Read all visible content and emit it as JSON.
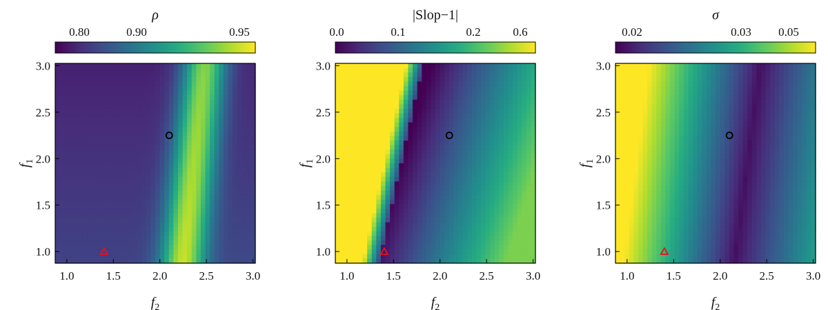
{
  "chart_data": [
    {
      "type": "heatmap",
      "colorbar_title": "ρ",
      "colorbar_title_italic": true,
      "colorbar_ticks": [
        "0.80",
        "0.90",
        "0.95"
      ],
      "xlabel": "f2",
      "ylabel": "f1",
      "xlim": [
        0.875,
        3.025
      ],
      "ylim": [
        0.875,
        3.025
      ],
      "xticks": [
        "1.0",
        "1.5",
        "2.0",
        "2.5",
        "3.0"
      ],
      "yticks": [
        "1.0",
        "1.5",
        "2.0",
        "2.5",
        "3.0"
      ],
      "field": "ridge of maximum values (yellow) running from f2≈2.25 at f1=0.9 to f2≈2.5 at f1=3.0; low values (dark) at small f2 and large f1",
      "markers": [
        {
          "shape": "circle",
          "color": "#000000",
          "f2": 2.1,
          "f1": 2.25
        },
        {
          "shape": "triangle",
          "color": "#e8101a",
          "f2": 1.4,
          "f1": 1.0
        }
      ],
      "colormap": "viridis"
    },
    {
      "type": "heatmap",
      "colorbar_title": "|Slop−1|",
      "colorbar_title_italic": false,
      "colorbar_ticks": [
        "0.0",
        "0.1",
        "0.2",
        "0.6"
      ],
      "xlabel": "f2",
      "ylabel": "f1",
      "xlim": [
        0.875,
        3.025
      ],
      "ylim": [
        0.875,
        3.025
      ],
      "xticks": [
        "1.0",
        "1.5",
        "2.0",
        "2.5",
        "3.0"
      ],
      "yticks": [
        "1.0",
        "1.5",
        "2.0",
        "2.5",
        "3.0"
      ],
      "field": "minimum valley (dark) running from f2≈1.4 at f1=0.9 to f2≈1.8 at f1=3.0; high values (yellow) at small f2",
      "markers": [
        {
          "shape": "circle",
          "color": "#000000",
          "f2": 2.1,
          "f1": 2.25
        },
        {
          "shape": "triangle",
          "color": "#e8101a",
          "f2": 1.4,
          "f1": 1.0
        }
      ],
      "colormap": "viridis"
    },
    {
      "type": "heatmap",
      "colorbar_title": "σ",
      "colorbar_title_italic": true,
      "colorbar_ticks": [
        "0.02",
        "0.03",
        "0.05"
      ],
      "xlabel": "f2",
      "ylabel": "f1",
      "xlim": [
        0.875,
        3.025
      ],
      "ylim": [
        0.875,
        3.025
      ],
      "xticks": [
        "1.0",
        "1.5",
        "2.0",
        "2.5",
        "3.0"
      ],
      "yticks": [
        "1.0",
        "1.5",
        "2.0",
        "2.5",
        "3.0"
      ],
      "field": "minimum valley (dark) running from f2≈2.1 at f1=0.9 to f2≈2.4 at f1=3.0; high values (yellow) at small f2",
      "markers": [
        {
          "shape": "circle",
          "color": "#000000",
          "f2": 2.1,
          "f1": 2.25
        },
        {
          "shape": "triangle",
          "color": "#e8101a",
          "f2": 1.4,
          "f1": 1.0
        }
      ],
      "colormap": "viridis"
    }
  ]
}
